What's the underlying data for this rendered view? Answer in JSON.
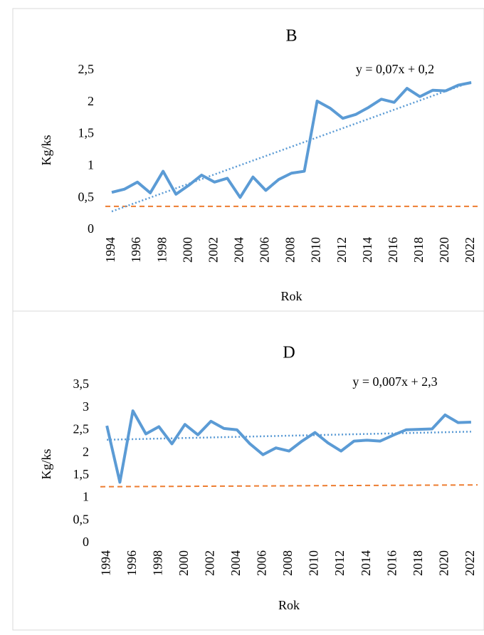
{
  "chart_data": [
    {
      "type": "line",
      "title": "B",
      "ylabel": "Kg/ks",
      "xlabel": "Rok",
      "x": [
        1994,
        1995,
        1996,
        1997,
        1998,
        1999,
        2000,
        2001,
        2002,
        2003,
        2004,
        2005,
        2006,
        2007,
        2008,
        2009,
        2010,
        2011,
        2012,
        2013,
        2014,
        2015,
        2016,
        2017,
        2018,
        2019,
        2020,
        2021,
        2022
      ],
      "series": [
        {
          "color": "#5b9bd5",
          "values": [
            0.59,
            0.64,
            0.75,
            0.58,
            0.92,
            0.56,
            0.7,
            0.86,
            0.75,
            0.81,
            0.51,
            0.83,
            0.62,
            0.79,
            0.89,
            0.92,
            2.02,
            1.91,
            1.75,
            1.81,
            1.92,
            2.05,
            2.0,
            2.22,
            2.09,
            2.19,
            2.18,
            2.27,
            2.31
          ]
        }
      ],
      "trendline": {
        "label": "y = 0,07x + 0,2",
        "x": [
          1994,
          2022
        ],
        "values": [
          0.29,
          2.32
        ],
        "color": "#5b9bd5"
      },
      "reference_line": {
        "values": [
          0.37,
          0.37
        ],
        "color": "#ed7d31"
      },
      "xlim": [
        1993.5,
        2022.5
      ],
      "xticks": [
        1994,
        1996,
        1998,
        2000,
        2002,
        2004,
        2006,
        2008,
        2010,
        2012,
        2014,
        2016,
        2018,
        2020,
        2022
      ],
      "ylim": [
        0,
        2.5
      ],
      "yticks": [
        0,
        {
          "value": 0.5,
          "label": "0,5"
        },
        1,
        {
          "value": 1.5,
          "label": "1,5"
        },
        2,
        {
          "value": 2.5,
          "label": "2,5"
        }
      ],
      "grid": false
    },
    {
      "type": "line",
      "title": "D",
      "ylabel": "Kg/ks",
      "xlabel": "Rok",
      "x": [
        1994,
        1995,
        1996,
        1997,
        1998,
        1999,
        2000,
        2001,
        2002,
        2003,
        2004,
        2005,
        2006,
        2007,
        2008,
        2009,
        2010,
        2011,
        2012,
        2013,
        2014,
        2015,
        2016,
        2017,
        2018,
        2019,
        2020,
        2021,
        2022
      ],
      "series": [
        {
          "color": "#5b9bd5",
          "values": [
            2.6,
            1.35,
            2.93,
            2.42,
            2.58,
            2.2,
            2.63,
            2.4,
            2.7,
            2.54,
            2.51,
            2.2,
            1.96,
            2.11,
            2.04,
            2.26,
            2.45,
            2.22,
            2.04,
            2.26,
            2.28,
            2.26,
            2.39,
            2.51,
            2.52,
            2.53,
            2.84,
            2.67,
            2.68
          ]
        }
      ],
      "trendline": {
        "label": "y = 0,007x + 2,3",
        "x": [
          1994,
          2022
        ],
        "values": [
          2.29,
          2.47
        ],
        "color": "#5b9bd5"
      },
      "reference_line": {
        "values": [
          1.25,
          1.29
        ],
        "color": "#ed7d31"
      },
      "xlim": [
        1993.5,
        2022.5
      ],
      "xticks": [
        1994,
        1996,
        1998,
        2000,
        2002,
        2004,
        2006,
        2008,
        2010,
        2012,
        2014,
        2016,
        2018,
        2020,
        2022
      ],
      "ylim": [
        0,
        3.5
      ],
      "yticks": [
        0,
        {
          "value": 0.5,
          "label": "0,5"
        },
        1,
        {
          "value": 1.5,
          "label": "1,5"
        },
        2,
        {
          "value": 2.5,
          "label": "2,5"
        },
        3,
        {
          "value": 3.5,
          "label": "3,5"
        }
      ],
      "grid": false
    }
  ]
}
